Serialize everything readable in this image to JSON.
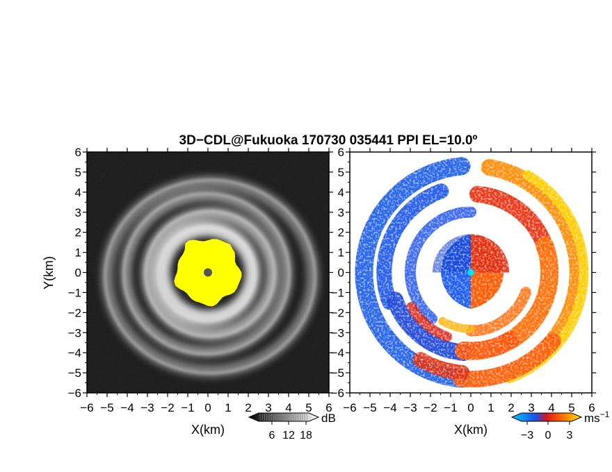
{
  "title": "3D−CDL@Fukuoka 170730 035441 PPI EL=10.0º",
  "chart_data": [
    {
      "type": "heatmap",
      "panel": "left",
      "variable": "reflectivity",
      "xlabel": "X(km)",
      "ylabel": "Y(km)",
      "xlim": [
        -6,
        6
      ],
      "ylim": [
        -6,
        6
      ],
      "xticks": [
        "−6",
        "−5",
        "−4",
        "−3",
        "−2",
        "−1",
        "0",
        "1",
        "2",
        "3",
        "4",
        "5",
        "6"
      ],
      "yticks": [
        "6",
        "5",
        "4",
        "3",
        "2",
        "1",
        "0",
        "−1",
        "−2",
        "−3",
        "−4",
        "−5",
        "−6"
      ],
      "colorbar": {
        "unit": "dB",
        "ticks": [
          6,
          12,
          18
        ],
        "tick_labels": [
          "6",
          "12",
          "18"
        ],
        "colormap": "grayscale"
      },
      "features": {
        "saturated_core_radius_km": 1.6,
        "saturated_color": "#ffff00",
        "radar_marker_color": "#555555",
        "bright_rings_radius_km": [
          2.3,
          3.1,
          4.0,
          5.1
        ]
      }
    },
    {
      "type": "heatmap",
      "panel": "right",
      "variable": "doppler_velocity",
      "xlabel": "X(km)",
      "xlim": [
        -6,
        6
      ],
      "ylim": [
        -6,
        6
      ],
      "xticks": [
        "−6",
        "−5",
        "−4",
        "−3",
        "−2",
        "−1",
        "0",
        "1",
        "2",
        "3",
        "4",
        "5",
        "6"
      ],
      "yticks": [
        "6",
        "5",
        "4",
        "3",
        "2",
        "1",
        "0",
        "−1",
        "−2",
        "−3",
        "−4",
        "−5",
        "−6"
      ],
      "colorbar": {
        "unit": "ms",
        "unit_exponent": "−1",
        "ticks": [
          -3,
          0,
          3
        ],
        "tick_labels": [
          "−3",
          "0",
          "3"
        ],
        "colormap": "cyan-blue-red-orange-yellow"
      },
      "features": {
        "core_radius_km": 1.9,
        "west_side_sign": "negative",
        "east_side_sign": "positive",
        "radar_marker_color": "#00e5ff"
      }
    }
  ]
}
